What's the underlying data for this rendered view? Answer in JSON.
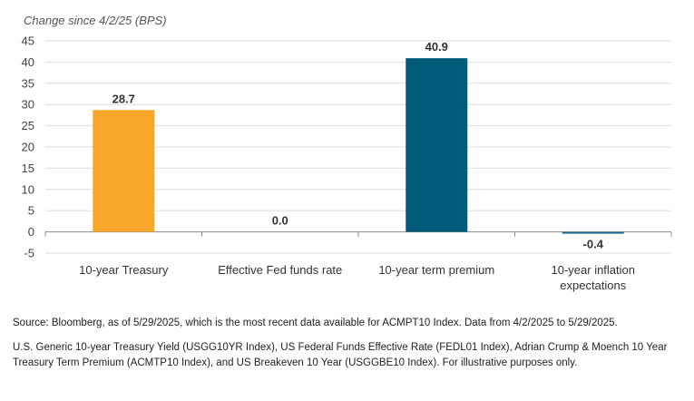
{
  "chart_data": {
    "type": "bar",
    "ylabel": "Change since 4/2/25 (BPS)",
    "ylim": [
      -5,
      45
    ],
    "yticks": [
      45,
      40,
      35,
      30,
      25,
      20,
      15,
      10,
      5,
      0,
      -5
    ],
    "grid": true,
    "categories": [
      [
        "10-year Treasury"
      ],
      [
        "Effective Fed funds rate"
      ],
      [
        "10-year term premium"
      ],
      [
        "10-year inflation",
        "expectations"
      ]
    ],
    "values": [
      28.7,
      0.0,
      40.9,
      -0.4
    ],
    "value_labels": [
      "28.7",
      "0.0",
      "40.9",
      "-0.4"
    ],
    "colors": [
      "#F9A72B",
      "#1F6B8E",
      "#005A7A",
      "#1F6B8E"
    ],
    "grid_color": "#DDDDDD",
    "axis_color": "#888888"
  },
  "notes": {
    "source": "Source: Bloomberg, as of 5/29/2025, which is the most recent data available for ACMPT10 Index. Data from 4/2/2025 to 5/29/2025.",
    "details": "U.S. Generic 10-year Treasury Yield (USGG10YR Index), US Federal Funds Effective Rate (FEDL01 Index), Adrian Crump & Moench 10 Year Treasury Term Premium (ACMTP10 Index), and US Breakeven 10 Year (USGGBE10 Index). For illustrative purposes only."
  }
}
